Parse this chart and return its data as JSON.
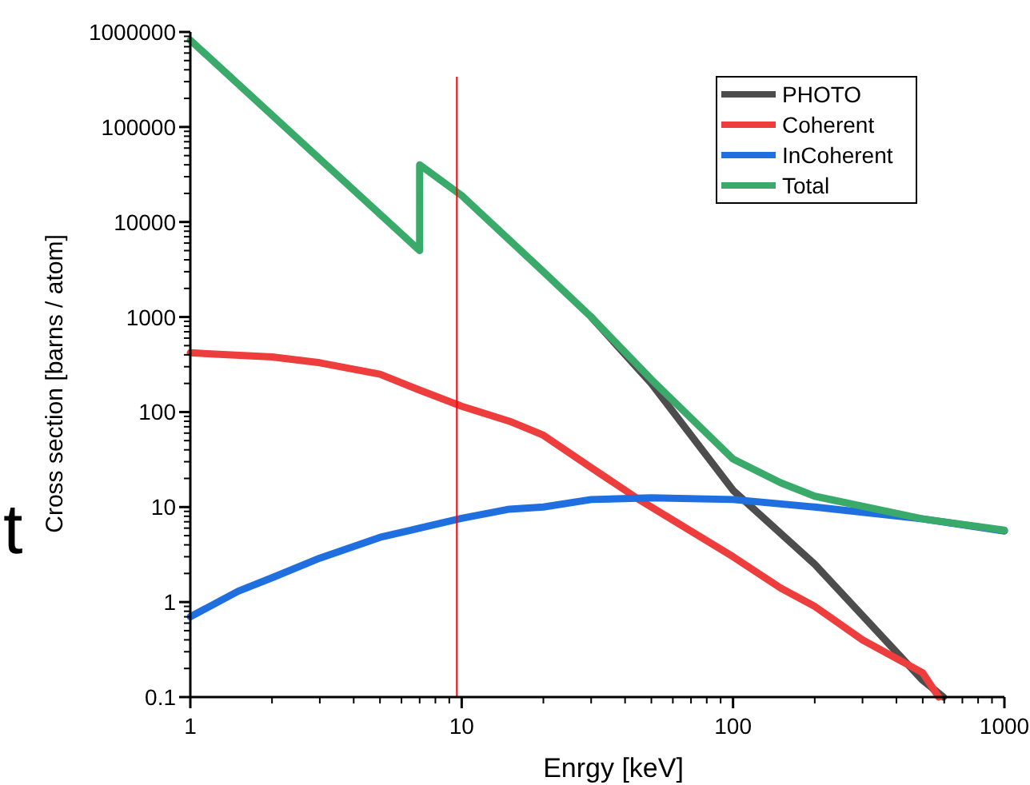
{
  "chart_data": {
    "type": "line",
    "xlabel": "Enrgy [keV]",
    "ylabel": "Cross section [barns / atom]",
    "annotations": [
      "t"
    ],
    "log": "xy",
    "xlim": [
      1,
      1000
    ],
    "ylim": [
      0.1,
      1000000
    ],
    "xticks": [
      1,
      10,
      100,
      1000
    ],
    "yticks": [
      0.1,
      1,
      10,
      100,
      1000,
      10000,
      100000,
      1000000
    ],
    "grid": false,
    "legend": "top right",
    "line_style": "solid",
    "marker": "none",
    "ref_lines": [
      {
        "axis": "x",
        "value": 9.6,
        "color": "#ff0000"
      }
    ],
    "series": [
      {
        "name": "PHOTO",
        "color": "#4d4d4d",
        "x": [
          30,
          50,
          100,
          200,
          500,
          596
        ],
        "values": [
          1000,
          200,
          15,
          2.5,
          0.15,
          0.1
        ]
      },
      {
        "name": "Coherent",
        "color": "#ee3d3d",
        "x": [
          1,
          2,
          3,
          5,
          7,
          10,
          15,
          20,
          30,
          45,
          100,
          150,
          200,
          300,
          500,
          573
        ],
        "values": [
          420,
          380,
          330,
          250,
          170,
          115,
          80,
          57,
          26,
          12,
          3,
          1.4,
          0.9,
          0.4,
          0.18,
          0.1
        ]
      },
      {
        "name": "InCoherent",
        "color": "#1f6fe0",
        "x": [
          1,
          1.5,
          2,
          3,
          5,
          7,
          10,
          15,
          20,
          30,
          50,
          100,
          200,
          500,
          1000
        ],
        "values": [
          0.7,
          1.3,
          1.8,
          2.9,
          4.8,
          6,
          7.6,
          9.5,
          10,
          12,
          12.5,
          12,
          10,
          7.5,
          5.6
        ]
      },
      {
        "name": "Total",
        "color": "#3aaa6a",
        "x": [
          1,
          7,
          7,
          10,
          20,
          30,
          50,
          100,
          150,
          200,
          500,
          1000
        ],
        "values": [
          820000,
          5000,
          40000,
          19000,
          3000,
          1000,
          220,
          32,
          18,
          13,
          7.5,
          5.7
        ]
      }
    ]
  }
}
